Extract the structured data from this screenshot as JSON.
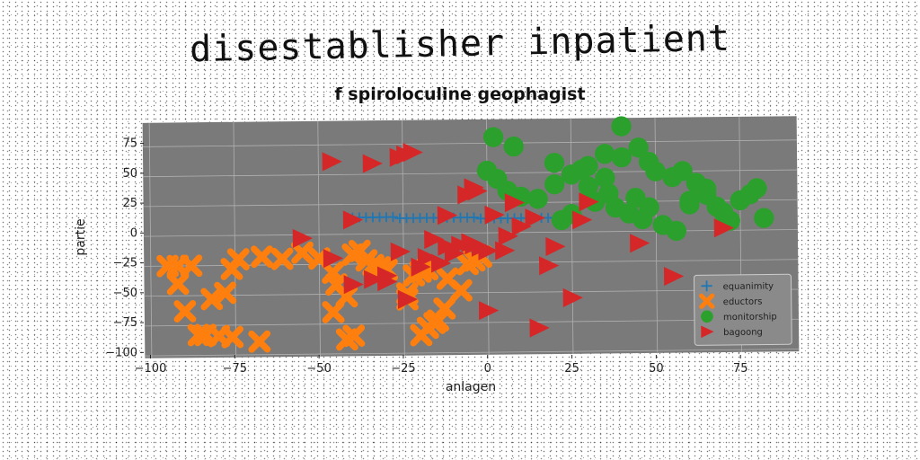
{
  "title": "disestablisher inpatient",
  "chart_data": {
    "type": "scatter",
    "title": "f spiroloculine geophagist",
    "xlabel": "anlagen",
    "ylabel": "partie",
    "xlim": [
      -102,
      92
    ],
    "ylim": [
      -102,
      95
    ],
    "xticks": [
      -100,
      -75,
      -50,
      -25,
      0,
      25,
      50,
      75
    ],
    "yticks": [
      -100,
      -75,
      -50,
      -25,
      0,
      25,
      50,
      75
    ],
    "grid": true,
    "legend_position": "lower-right",
    "plot_background": "#7a7a7a",
    "series": [
      {
        "name": "equanimity",
        "marker": "plus",
        "color": "#1f77b4",
        "x": [
          -40,
          -38,
          -36,
          -34,
          -32,
          -30,
          -28,
          -26,
          -24,
          -22,
          -20,
          -18,
          -16,
          -14,
          -12,
          -10,
          -8,
          -6,
          -4,
          -2,
          0,
          2,
          4,
          6,
          8,
          10,
          12,
          14,
          16,
          18,
          20,
          22,
          24
        ],
        "y": [
          14,
          14,
          14,
          14,
          14,
          14,
          14,
          13,
          13,
          13,
          13,
          13,
          13,
          13,
          13,
          13,
          13,
          13,
          13,
          12,
          12,
          12,
          12,
          12,
          12,
          12,
          12,
          12,
          12,
          12,
          12,
          12,
          12
        ]
      },
      {
        "name": "eductors",
        "marker": "x",
        "color": "#ff7f0e",
        "x": [
          -95,
          -92,
          -90,
          -88,
          -92,
          -80,
          -76,
          -78,
          -82,
          -86,
          -84,
          -76,
          -74,
          -68,
          -61,
          -67,
          -55,
          -50,
          -46,
          -45,
          -46,
          -42,
          -40,
          -38,
          -36,
          -34,
          -32,
          -30,
          -40,
          -42,
          -20,
          -18,
          -24,
          -22,
          -12,
          -6,
          -4,
          -2,
          -8,
          -24,
          -15,
          -13,
          -18,
          -20,
          -16
        ],
        "y": [
          -25,
          -40,
          -63,
          -25,
          -25,
          -84,
          -85,
          -48,
          -53,
          -83,
          -83,
          -28,
          -20,
          -89,
          -20,
          -18,
          -15,
          -20,
          -32,
          -42,
          -65,
          -52,
          -17,
          -14,
          -22,
          -26,
          -28,
          -30,
          -85,
          -88,
          -32,
          -30,
          -50,
          -35,
          -38,
          -26,
          -23,
          -20,
          -48,
          -55,
          -73,
          -63,
          -79,
          -85,
          -75
        ]
      },
      {
        "name": "monitorship",
        "marker": "circle",
        "color": "#2ca02c",
        "x": [
          2,
          8,
          0,
          3,
          6,
          10,
          15,
          20,
          25,
          28,
          30,
          35,
          40,
          45,
          48,
          50,
          55,
          58,
          60,
          62,
          65,
          68,
          70,
          72,
          75,
          78,
          80,
          82,
          38,
          42,
          46,
          52,
          56,
          32,
          36,
          44,
          48,
          35,
          40,
          30,
          25,
          22,
          60,
          65,
          20
        ],
        "y": [
          80,
          72,
          52,
          45,
          35,
          30,
          28,
          40,
          48,
          52,
          55,
          65,
          88,
          70,
          58,
          50,
          45,
          50,
          25,
          40,
          30,
          20,
          15,
          8,
          25,
          30,
          35,
          10,
          20,
          15,
          10,
          5,
          0,
          25,
          32,
          28,
          20,
          45,
          62,
          38,
          15,
          10,
          22,
          35,
          58
        ]
      },
      {
        "name": "bagoong",
        "marker": "triangle-right",
        "color": "#d62728",
        "x": [
          -46,
          -34,
          -26,
          -24,
          -22,
          -40,
          -55,
          -46,
          -40,
          -34,
          -30,
          -26,
          -20,
          -18,
          -14,
          -12,
          -8,
          -5,
          -2,
          0,
          2,
          5,
          8,
          10,
          -6,
          -4,
          -3,
          6,
          18,
          20,
          14,
          25,
          30,
          45,
          55,
          70,
          -12,
          -4,
          28,
          -10,
          -16,
          -24,
          0,
          15,
          -30
        ],
        "y": [
          61,
          59,
          64,
          66,
          68,
          12,
          -3,
          -20,
          -42,
          -38,
          -35,
          -15,
          -28,
          -20,
          -25,
          -11,
          -10,
          -8,
          -12,
          -15,
          15,
          -15,
          25,
          5,
          32,
          38,
          35,
          -3,
          -28,
          -12,
          12,
          -55,
          25,
          -10,
          -38,
          2,
          15,
          -10,
          10,
          -17,
          -5,
          -55,
          -65,
          -80,
          -40
        ]
      }
    ]
  }
}
